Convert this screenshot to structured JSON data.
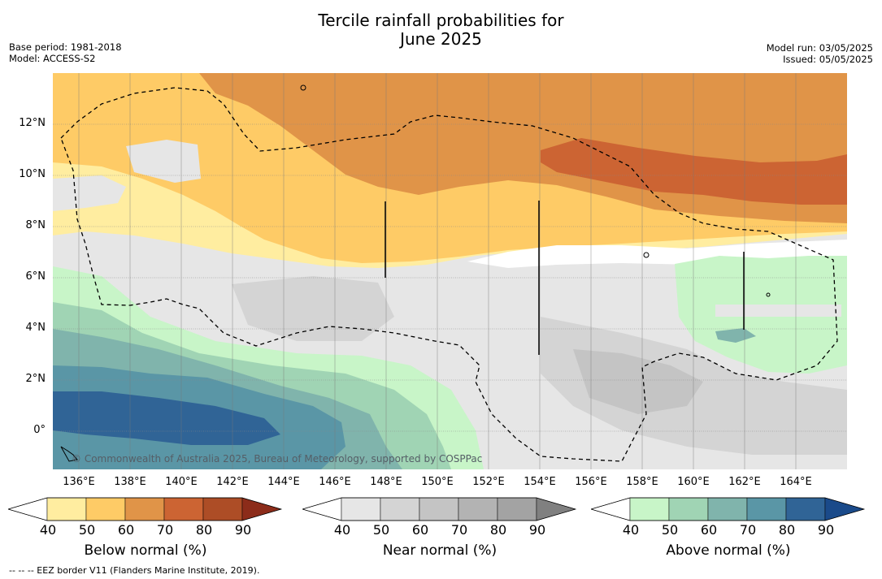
{
  "title_line1": "Tercile rainfall probabilities for",
  "title_line2": "June 2025",
  "meta_left": [
    "Base period: 1981-2018",
    "Model: ACCESS-S2"
  ],
  "meta_right": [
    "Model run: 03/05/2025",
    "Issued: 05/05/2025"
  ],
  "lat_labels": [
    "12°N",
    "10°N",
    "8°N",
    "6°N",
    "4°N",
    "2°N",
    "0°"
  ],
  "lon_labels": [
    "136°E",
    "138°E",
    "140°E",
    "142°E",
    "144°E",
    "146°E",
    "148°E",
    "150°E",
    "152°E",
    "154°E",
    "156°E",
    "158°E",
    "160°E",
    "162°E",
    "164°E"
  ],
  "copyright": "© Commonwealth of Australia 2025, Bureau of Meteorology, supported by COSPPac",
  "legends": [
    {
      "title": "Below normal (%)",
      "ticks": [
        "40",
        "50",
        "60",
        "70",
        "80",
        "90"
      ],
      "colors": [
        "#ffffff",
        "#ffeda0",
        "#fecb66",
        "#e09448",
        "#cc6433",
        "#ad4d26",
        "#8c2c1a"
      ]
    },
    {
      "title": "Near normal (%)",
      "ticks": [
        "40",
        "50",
        "60",
        "70",
        "80",
        "90"
      ],
      "colors": [
        "#ffffff",
        "#e6e6e6",
        "#d4d4d4",
        "#c4c4c4",
        "#b3b3b3",
        "#a3a3a3",
        "#808080"
      ]
    },
    {
      "title": "Above normal (%)",
      "ticks": [
        "40",
        "50",
        "60",
        "70",
        "80",
        "90"
      ],
      "colors": [
        "#ffffff",
        "#c8f5c8",
        "#a0d4b4",
        "#80b4ac",
        "#5a96a6",
        "#306496",
        "#1a4a8a"
      ]
    }
  ],
  "footnote": "--  --  -- EEZ border V11 (Flanders Marine Institute, 2019)."
}
